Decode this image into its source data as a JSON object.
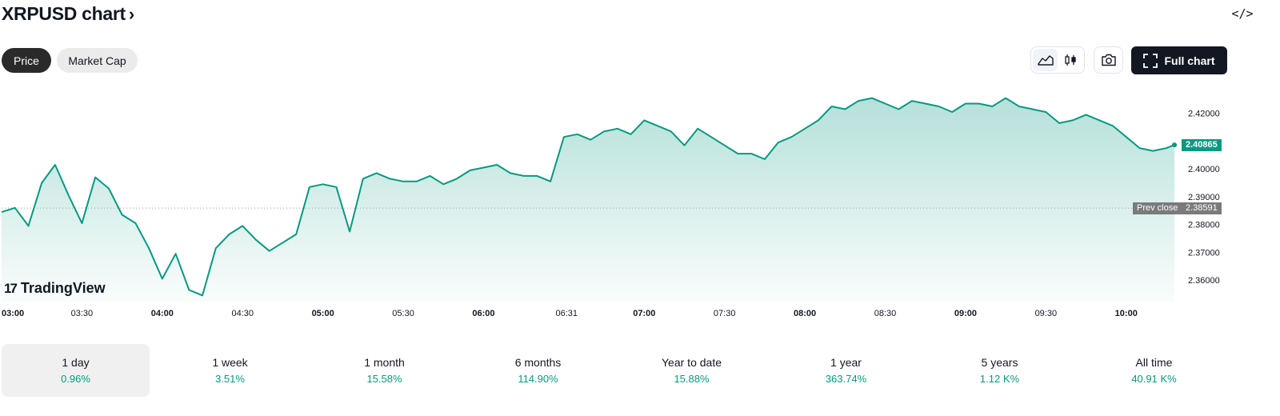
{
  "header": {
    "title": "XRPUSD chart",
    "chevron": "›",
    "embed_label": "</>"
  },
  "tabs": [
    {
      "label": "Price",
      "active": true
    },
    {
      "label": "Market Cap",
      "active": false
    }
  ],
  "toolbar": {
    "area_icon": "area-chart-icon",
    "candle_icon": "candlestick-icon",
    "camera_icon": "camera-icon",
    "full_chart_label": "Full chart",
    "full_chart_icon": "fullscreen-icon"
  },
  "branding": {
    "logo_mark": "17",
    "logo_text": "TradingView"
  },
  "colors": {
    "line": "#089981",
    "fill_top": "#b7e3d9",
    "prev_close_badge": "#7a7a7a",
    "last_price_badge": "#089981"
  },
  "chart_data": {
    "type": "area",
    "ylim": [
      2.352,
      2.432
    ],
    "x_range": [
      "03:00",
      "10:18"
    ],
    "x_ticks": [
      "03:00",
      "03:30",
      "04:00",
      "04:30",
      "05:00",
      "05:30",
      "06:00",
      "06:31",
      "07:00",
      "07:30",
      "08:00",
      "08:30",
      "09:00",
      "09:30",
      "10:00"
    ],
    "x_ticks_bold": [
      "03:00",
      "04:00",
      "05:00",
      "06:00",
      "07:00",
      "08:00",
      "09:00",
      "10:00"
    ],
    "y_ticks": [
      "2.42000",
      "2.40000",
      "2.39000",
      "2.38000",
      "2.37000",
      "2.36000"
    ],
    "prev_close": {
      "label": "Prev close",
      "value": "2.38591"
    },
    "last_price": "2.40865",
    "series": [
      {
        "times": [
          "03:00",
          "03:05",
          "03:10",
          "03:15",
          "03:20",
          "03:25",
          "03:30",
          "03:35",
          "03:40",
          "03:45",
          "03:50",
          "03:55",
          "04:00",
          "04:05",
          "04:10",
          "04:15",
          "04:20",
          "04:25",
          "04:30",
          "04:35",
          "04:40",
          "04:45",
          "04:50",
          "04:55",
          "05:00",
          "05:05",
          "05:10",
          "05:15",
          "05:20",
          "05:25",
          "05:30",
          "05:35",
          "05:40",
          "05:45",
          "05:50",
          "05:55",
          "06:00",
          "06:05",
          "06:10",
          "06:15",
          "06:20",
          "06:25",
          "06:30",
          "06:35",
          "06:40",
          "06:45",
          "06:50",
          "06:55",
          "07:00",
          "07:05",
          "07:10",
          "07:15",
          "07:20",
          "07:25",
          "07:30",
          "07:35",
          "07:40",
          "07:45",
          "07:50",
          "07:55",
          "08:00",
          "08:05",
          "08:10",
          "08:15",
          "08:20",
          "08:25",
          "08:30",
          "08:35",
          "08:40",
          "08:45",
          "08:50",
          "08:55",
          "09:00",
          "09:05",
          "09:10",
          "09:15",
          "09:20",
          "09:25",
          "09:30",
          "09:35",
          "09:40",
          "09:45",
          "09:50",
          "09:55",
          "10:00",
          "10:05",
          "10:10",
          "10:15",
          "10:18"
        ],
        "values": [
          2.3845,
          2.386,
          2.3795,
          2.395,
          2.4015,
          2.3905,
          2.3805,
          2.397,
          2.393,
          2.3835,
          2.3805,
          2.3715,
          2.3605,
          2.3695,
          2.3565,
          2.3545,
          2.3715,
          2.3765,
          2.3795,
          2.3745,
          2.3705,
          2.3735,
          2.3765,
          2.3935,
          2.3945,
          2.3935,
          2.3775,
          2.3965,
          2.3985,
          2.3965,
          2.3955,
          2.3955,
          2.3975,
          2.3945,
          2.3965,
          2.3995,
          2.4005,
          2.4015,
          2.3985,
          2.3975,
          2.3975,
          2.3955,
          2.4115,
          2.4125,
          2.4105,
          2.4135,
          2.4145,
          2.4125,
          2.4175,
          2.4155,
          2.4135,
          2.4085,
          2.4145,
          2.4115,
          2.4085,
          2.4055,
          2.4055,
          2.4035,
          2.4095,
          2.4115,
          2.4145,
          2.4175,
          2.4225,
          2.4215,
          2.4245,
          2.4255,
          2.4235,
          2.4215,
          2.4245,
          2.4235,
          2.4225,
          2.4205,
          2.4235,
          2.4235,
          2.4225,
          2.4255,
          2.4225,
          2.4215,
          2.4205,
          2.4165,
          2.4175,
          2.4195,
          2.4175,
          2.4155,
          2.4115,
          2.4075,
          2.4065,
          2.4075,
          2.40865
        ]
      }
    ]
  },
  "periods": [
    {
      "label": "1 day",
      "value": "0.96%",
      "selected": true
    },
    {
      "label": "1 week",
      "value": "3.51%",
      "selected": false
    },
    {
      "label": "1 month",
      "value": "15.58%",
      "selected": false
    },
    {
      "label": "6 months",
      "value": "114.90%",
      "selected": false
    },
    {
      "label": "Year to date",
      "value": "15.88%",
      "selected": false
    },
    {
      "label": "1 year",
      "value": "363.74%",
      "selected": false
    },
    {
      "label": "5 years",
      "value": "1.12 K%",
      "selected": false
    },
    {
      "label": "All time",
      "value": "40.91 K%",
      "selected": false
    }
  ]
}
